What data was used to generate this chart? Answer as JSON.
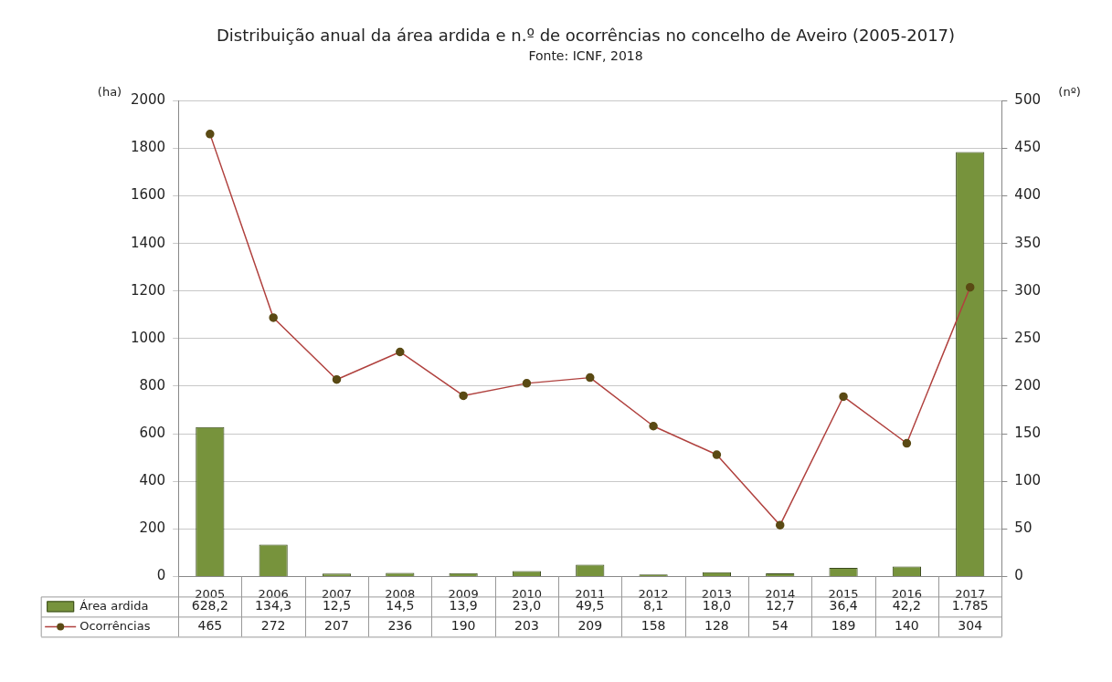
{
  "chart_data": {
    "type": "bar",
    "title": "Distribuição anual da área ardida e n.º de ocorrências no concelho de Aveiro (2005-2017)",
    "subtitle": "Fonte: ICNF, 2018",
    "ylabel": "(ha)",
    "y2label": "(nº)",
    "categories": [
      "2005",
      "2006",
      "2007",
      "2008",
      "2009",
      "2010",
      "2011",
      "2012",
      "2013",
      "2014",
      "2015",
      "2016",
      "2017"
    ],
    "series": [
      {
        "name": "Área ardida",
        "color": "#77933c",
        "values": [
          628.2,
          134.3,
          12.5,
          14.5,
          13.9,
          23.0,
          49.5,
          8.1,
          18.0,
          12.7,
          36.4,
          42.2,
          1785
        ],
        "value_labels": [
          "628,2",
          "134,3",
          "12,5",
          "14,5",
          "13,9",
          "23,0",
          "49,5",
          "8,1",
          "18,0",
          "12,7",
          "36,4",
          "42,2",
          "1.785"
        ]
      },
      {
        "name": "Ocorrências",
        "type": "line",
        "axis": "y2",
        "color": "#b0413e",
        "marker": "circle",
        "values": [
          465,
          272,
          207,
          236,
          190,
          203,
          209,
          158,
          128,
          54,
          189,
          140,
          304
        ],
        "value_labels": [
          "465",
          "272",
          "207",
          "236",
          "190",
          "203",
          "209",
          "158",
          "128",
          "54",
          "189",
          "140",
          "304"
        ]
      }
    ],
    "ylim": [
      0,
      2000
    ],
    "yticks": [
      0,
      200,
      400,
      600,
      800,
      1000,
      1200,
      1400,
      1600,
      1800,
      2000
    ],
    "y2lim": [
      0,
      500
    ],
    "y2ticks": [
      0,
      50,
      100,
      150,
      200,
      250,
      300,
      350,
      400,
      450,
      500
    ],
    "grid": "y",
    "legend": "bottom"
  }
}
